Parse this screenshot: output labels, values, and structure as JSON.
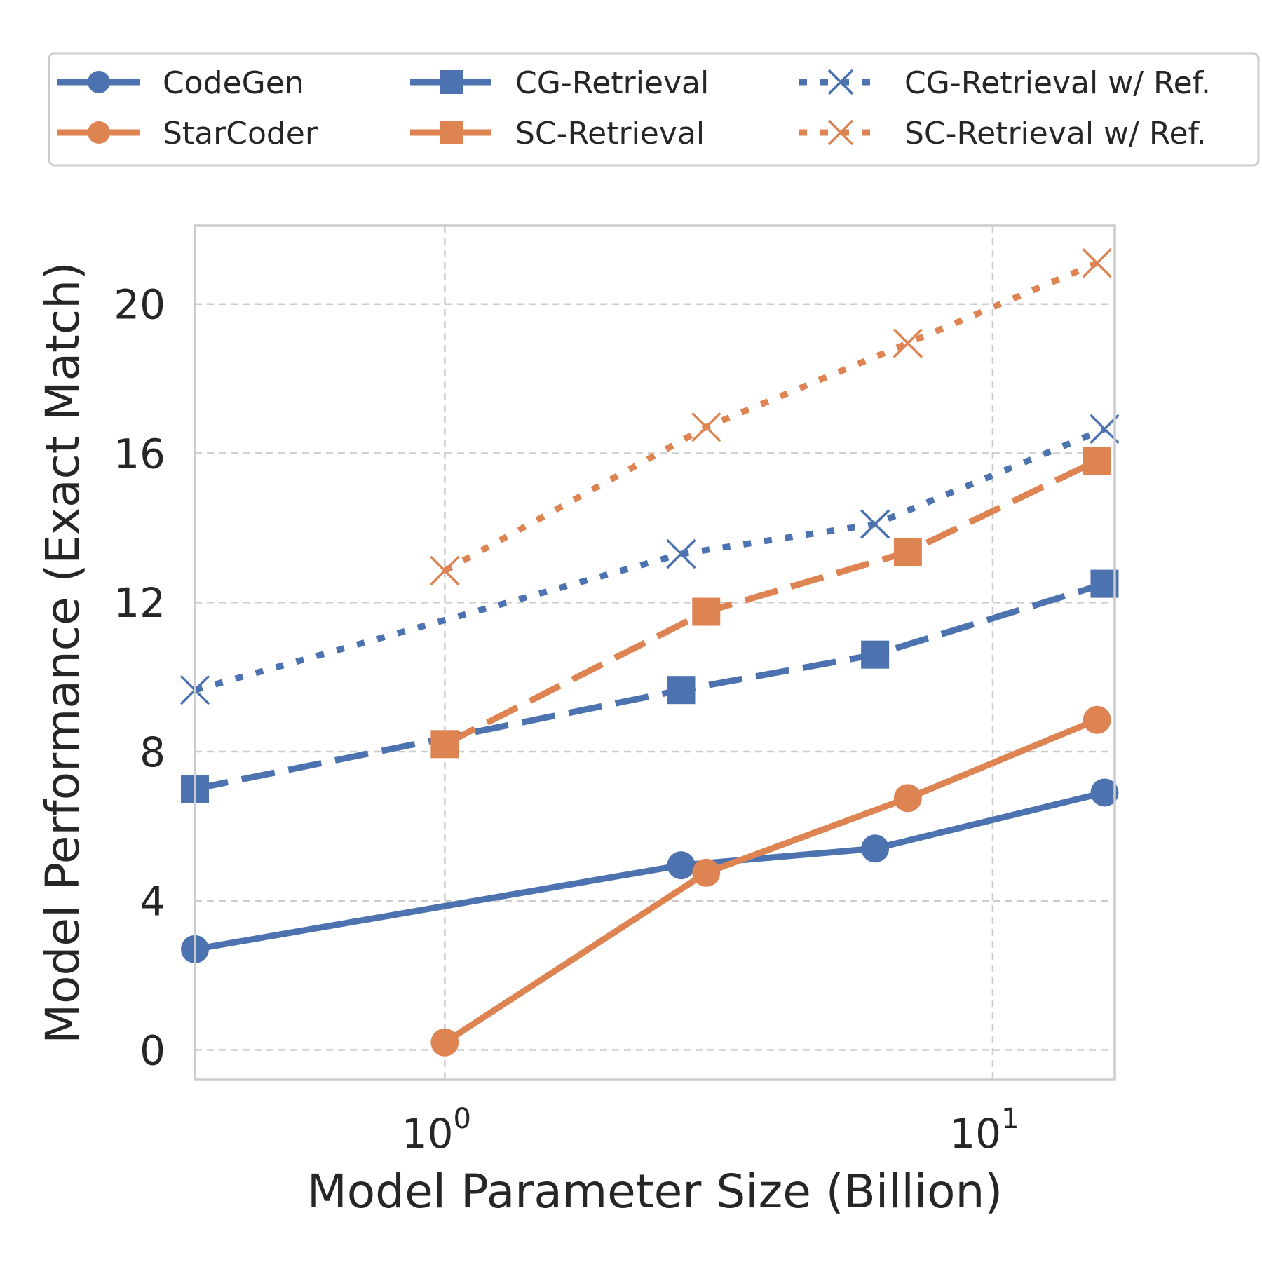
{
  "chart_data": {
    "type": "line",
    "xscale": "log",
    "xlabel": "Model Parameter Size (Billion)",
    "ylabel": "Model Performance (Exact Match)",
    "xlim": [
      0.35,
      16.7
    ],
    "ylim": [
      -0.8,
      22.1
    ],
    "xticks": [
      {
        "value": 1,
        "base": "10",
        "exp": "0"
      },
      {
        "value": 10,
        "base": "10",
        "exp": "1"
      }
    ],
    "yticks": [
      {
        "value": 0,
        "label": "0"
      },
      {
        "value": 4,
        "label": "4"
      },
      {
        "value": 8,
        "label": "8"
      },
      {
        "value": 12,
        "label": "12"
      },
      {
        "value": 16,
        "label": "16"
      },
      {
        "value": 20,
        "label": "20"
      }
    ],
    "grid": true,
    "legend_position": "top",
    "series": [
      {
        "name": "CodeGen",
        "color": "#4c72b0",
        "style": "solid",
        "marker": "circle",
        "x": [
          0.35,
          2.7,
          6.1,
          16
        ],
        "y": [
          2.7,
          4.95,
          5.4,
          6.9
        ]
      },
      {
        "name": "StarCoder",
        "color": "#dd8452",
        "style": "solid",
        "marker": "circle",
        "x": [
          1,
          3,
          7,
          15.5
        ],
        "y": [
          0.2,
          4.75,
          6.75,
          8.85
        ]
      },
      {
        "name": "CG-Retrieval",
        "color": "#4c72b0",
        "style": "dashed",
        "marker": "square",
        "x": [
          0.35,
          2.7,
          6.1,
          16
        ],
        "y": [
          7.0,
          9.65,
          10.6,
          12.5
        ]
      },
      {
        "name": "SC-Retrieval",
        "color": "#dd8452",
        "style": "dashed",
        "marker": "square",
        "x": [
          1,
          3,
          7,
          15.5
        ],
        "y": [
          8.2,
          11.75,
          13.35,
          15.8
        ]
      },
      {
        "name": "CG-Retrieval w/ Ref.",
        "color": "#4c72b0",
        "style": "dotted",
        "marker": "x",
        "x": [
          0.35,
          2.7,
          6.1,
          16
        ],
        "y": [
          9.65,
          13.3,
          14.1,
          16.65
        ]
      },
      {
        "name": "SC-Retrieval w/ Ref.",
        "color": "#dd8452",
        "style": "dotted",
        "marker": "x",
        "x": [
          1,
          3,
          7,
          15.5
        ],
        "y": [
          12.85,
          16.7,
          18.95,
          21.1
        ]
      }
    ]
  }
}
